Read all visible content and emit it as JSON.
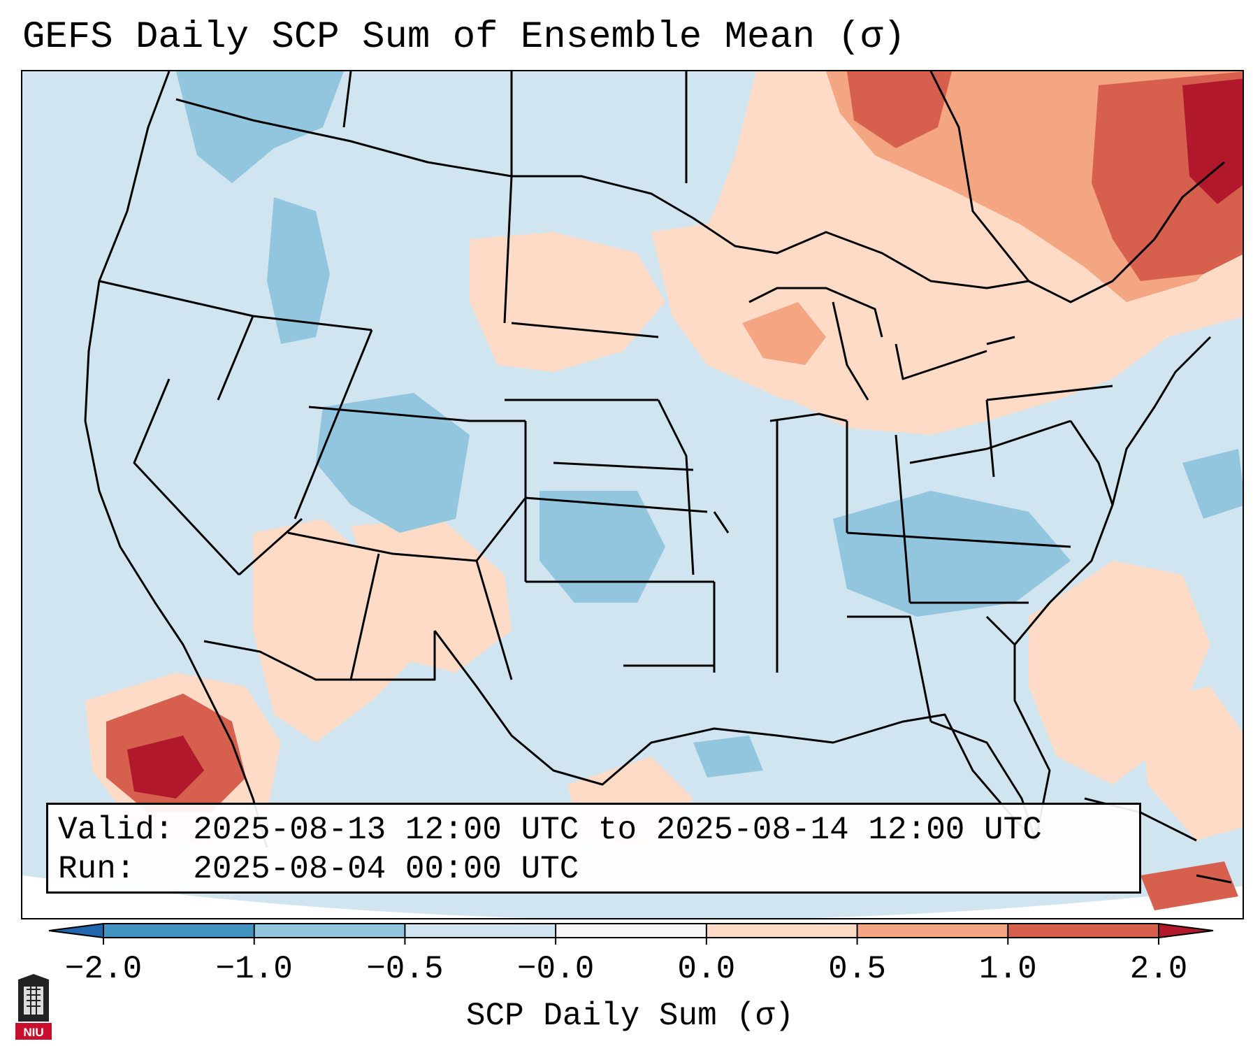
{
  "title": "GEFS Daily SCP Sum of Ensemble Mean (σ)",
  "valid_line": "Valid: 2025-08-13 12:00 UTC to 2025-08-14 12:00 UTC",
  "run_line": "Run:   2025-08-04 00:00 UTC",
  "colorbar": {
    "label": "SCP Daily Sum (σ)",
    "ticks": [
      "−2.0",
      "−1.0",
      "−0.5",
      "−0.0",
      "0.0",
      "0.5",
      "1.0",
      "2.0"
    ],
    "colors": [
      "#4393c3",
      "#92c5de",
      "#d1e5f0",
      "#f7f7f7",
      "#fddbc7",
      "#f4a582",
      "#d6604d",
      "#b2182b"
    ],
    "extend_low": "#2166ac",
    "extend_high": "#b2182b"
  },
  "logo": {
    "text": "NIU",
    "color": "#c8102e"
  }
}
